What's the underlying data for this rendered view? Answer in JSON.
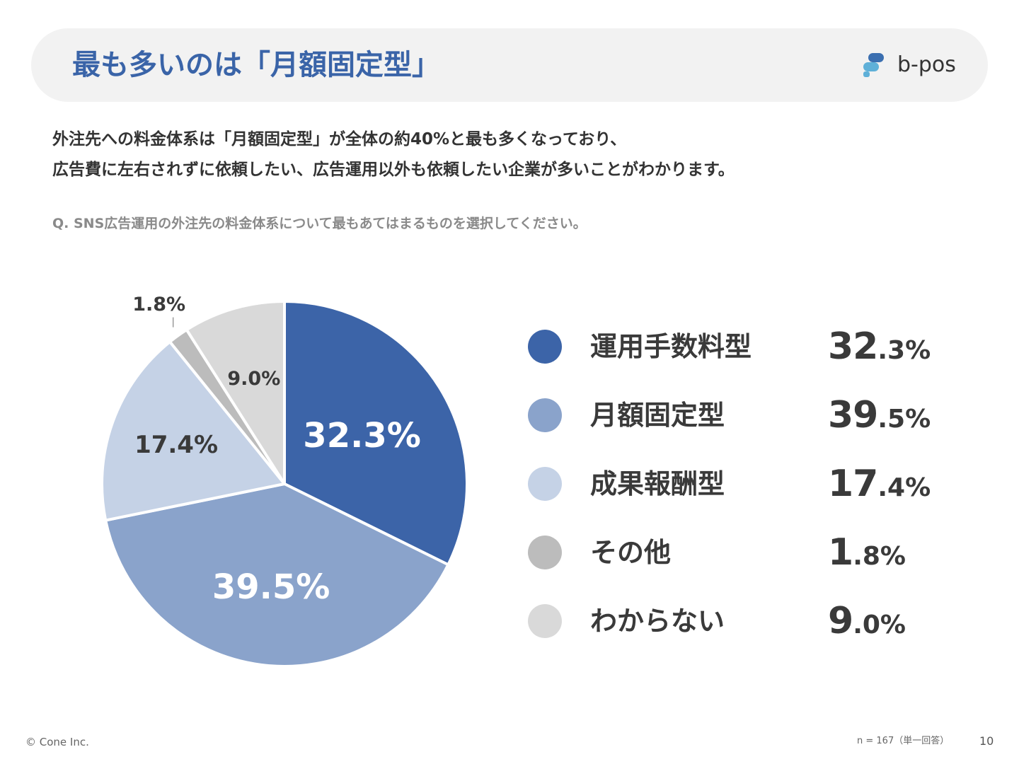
{
  "header": {
    "title": "最も多いのは「月額固定型」",
    "logo_text": "b-pos"
  },
  "description": {
    "line1": "外注先への料金体系は「月額固定型」が全体の約40%と最も多くなっており、",
    "line2": "広告費に左右されずに依頼したい、広告運用以外も依頼したい企業が多いことがわかります。"
  },
  "question": "Q. SNS広告運用の外注先の料金体系について最もあてはまるものを選択してください。",
  "chart_data": {
    "type": "pie",
    "unit": "%",
    "slices": [
      {
        "label": "運用手数料型",
        "value": 32.3,
        "display": "32.3%",
        "value_int": "32",
        "value_dec": ".3%",
        "color": "#3c64a8",
        "label_color": "#ffffff"
      },
      {
        "label": "月額固定型",
        "value": 39.5,
        "display": "39.5%",
        "value_int": "39",
        "value_dec": ".5%",
        "color": "#8aa3cb",
        "label_color": "#ffffff"
      },
      {
        "label": "成果報酬型",
        "value": 17.4,
        "display": "17.4%",
        "value_int": "17",
        "value_dec": ".4%",
        "color": "#c5d2e6",
        "label_color": "#3a3a3a"
      },
      {
        "label": "その他",
        "value": 1.8,
        "display": "1.8%",
        "value_int": "1",
        "value_dec": ".8%",
        "color": "#bcbcbc",
        "label_color": "#3a3a3a"
      },
      {
        "label": "わからない",
        "value": 9.0,
        "display": "9.0%",
        "value_int": "9",
        "value_dec": ".0%",
        "color": "#d9d9d9",
        "label_color": "#3a3a3a"
      }
    ]
  },
  "footer": {
    "copyright": "© Cone Inc.",
    "note": "n = 167（単一回答）",
    "page_number": "10"
  },
  "colors": {
    "title": "#3a64a8",
    "header_bg": "#f2f2f2",
    "logo_dark": "#3b6fb0",
    "logo_light": "#5fb0d8"
  }
}
